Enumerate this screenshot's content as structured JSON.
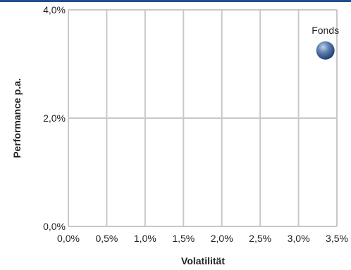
{
  "colors": {
    "top_rule": "#1f4e8c",
    "grid": "#c8c8c8",
    "text": "#222222",
    "point_light": "#c2d3e8",
    "point_mid": "#5b7fae",
    "point_dark": "#1f3f73"
  },
  "chart_data": {
    "type": "scatter",
    "title": "",
    "xlabel": "Volatilität",
    "ylabel": "Performance p.a.",
    "xlim": [
      0,
      3.5
    ],
    "ylim": [
      0,
      4
    ],
    "x_ticks": [
      {
        "value": 0,
        "label": "0,0%"
      },
      {
        "value": 0.5,
        "label": "0,5%"
      },
      {
        "value": 1,
        "label": "1,0%"
      },
      {
        "value": 1.5,
        "label": "1,5%"
      },
      {
        "value": 2,
        "label": "2,0%"
      },
      {
        "value": 2.5,
        "label": "2,5%"
      },
      {
        "value": 3,
        "label": "3,0%"
      },
      {
        "value": 3.5,
        "label": "3,5%"
      }
    ],
    "y_ticks": [
      {
        "value": 0,
        "label": "0,0%"
      },
      {
        "value": 2,
        "label": "2,0%"
      },
      {
        "value": 4,
        "label": "4,0%"
      }
    ],
    "grid": true,
    "points": [
      {
        "label": "Fonds",
        "x": 3.35,
        "y": 3.25
      }
    ]
  }
}
